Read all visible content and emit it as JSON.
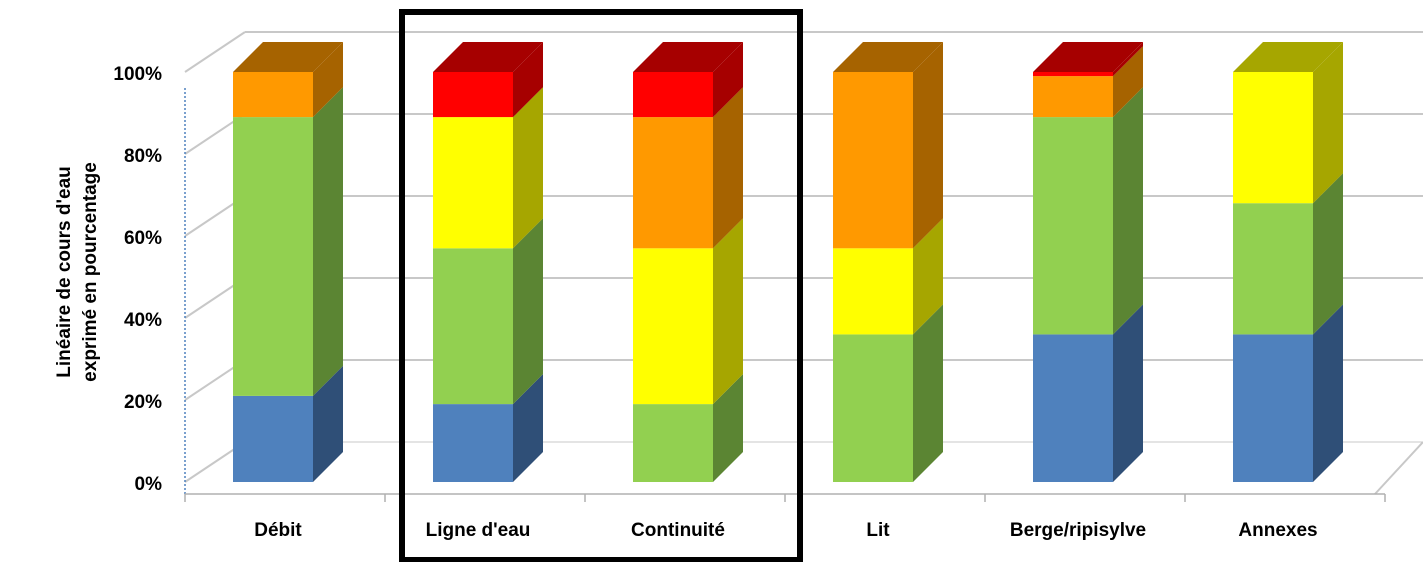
{
  "chart_data": {
    "type": "bar",
    "stacked": true,
    "three_d": true,
    "ylabel_lines": [
      "Linéaire de cours d'eau",
      "exprimé en pourcentage"
    ],
    "categories": [
      "Débit",
      "Ligne d'eau",
      "Continuité",
      "Lit",
      "Berge/ripisylve",
      "Annexes"
    ],
    "yticks": [
      "0%",
      "20%",
      "40%",
      "60%",
      "80%",
      "100%"
    ],
    "ylim": [
      0,
      100
    ],
    "grid": true,
    "highlight_box": {
      "categories": [
        "Ligne d'eau",
        "Continuité"
      ]
    },
    "series": [
      {
        "color": "#4F81BD",
        "side_color": "#2F4F77",
        "values": [
          21,
          19,
          0,
          0,
          36,
          36
        ]
      },
      {
        "color": "#92D050",
        "side_color": "#5B8533",
        "values": [
          68,
          38,
          19,
          36,
          53,
          32
        ]
      },
      {
        "color": "#FFFF00",
        "side_color": "#A6A600",
        "values": [
          0,
          32,
          38,
          21,
          0,
          32
        ]
      },
      {
        "color": "#FF9900",
        "side_color": "#A66300",
        "values": [
          11,
          0,
          32,
          43,
          10,
          0
        ]
      },
      {
        "color": "#FF0000",
        "side_color": "#A60000",
        "values": [
          0,
          11,
          11,
          0,
          1,
          0
        ]
      }
    ]
  }
}
